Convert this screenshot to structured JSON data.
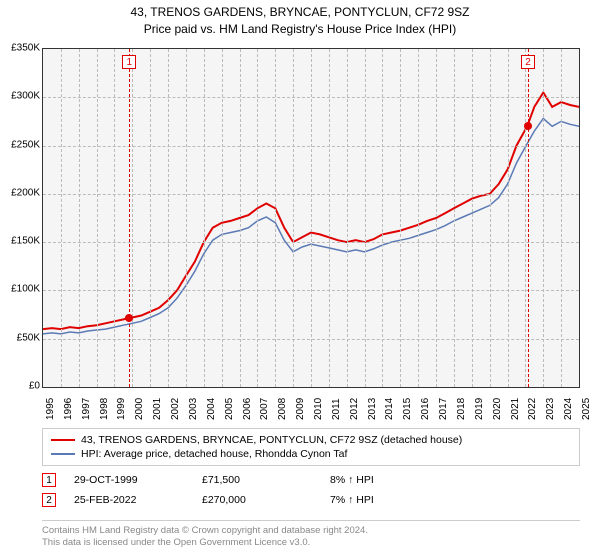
{
  "title": {
    "line1": "43, TRENOS GARDENS, BRYNCAE, PONTYCLUN, CF72 9SZ",
    "line2": "Price paid vs. HM Land Registry's House Price Index (HPI)"
  },
  "chart": {
    "type": "line",
    "background_color": "#f5f5f5",
    "grid_color": "#bbbbbb",
    "border_color": "#333333",
    "y": {
      "min": 0,
      "max": 350000,
      "step": 50000,
      "labels": [
        "£0",
        "£50K",
        "£100K",
        "£150K",
        "£200K",
        "£250K",
        "£300K",
        "£350K"
      ]
    },
    "x": {
      "min": 1995,
      "max": 2025,
      "labels": [
        "1995",
        "1996",
        "1997",
        "1998",
        "1999",
        "2000",
        "2001",
        "2002",
        "2003",
        "2004",
        "2005",
        "2006",
        "2007",
        "2008",
        "2009",
        "2010",
        "2011",
        "2012",
        "2013",
        "2014",
        "2015",
        "2016",
        "2017",
        "2018",
        "2019",
        "2020",
        "2021",
        "2022",
        "2023",
        "2024",
        "2025"
      ]
    },
    "series": [
      {
        "name": "43, TRENOS GARDENS, BRYNCAE, PONTYCLUN, CF72 9SZ (detached house)",
        "color": "#e00000",
        "width": 2,
        "data": [
          [
            1995.0,
            60
          ],
          [
            1995.5,
            61
          ],
          [
            1996.0,
            60
          ],
          [
            1996.5,
            62
          ],
          [
            1997.0,
            61
          ],
          [
            1997.5,
            63
          ],
          [
            1998.0,
            64
          ],
          [
            1998.5,
            66
          ],
          [
            1999.0,
            68
          ],
          [
            1999.5,
            70
          ],
          [
            1999.8,
            71.5
          ],
          [
            2000.0,
            72
          ],
          [
            2000.5,
            74
          ],
          [
            2001.0,
            78
          ],
          [
            2001.5,
            82
          ],
          [
            2002.0,
            90
          ],
          [
            2002.5,
            100
          ],
          [
            2003.0,
            115
          ],
          [
            2003.5,
            130
          ],
          [
            2004.0,
            150
          ],
          [
            2004.5,
            165
          ],
          [
            2005.0,
            170
          ],
          [
            2005.5,
            172
          ],
          [
            2006.0,
            175
          ],
          [
            2006.5,
            178
          ],
          [
            2007.0,
            185
          ],
          [
            2007.5,
            190
          ],
          [
            2008.0,
            185
          ],
          [
            2008.5,
            165
          ],
          [
            2009.0,
            150
          ],
          [
            2009.5,
            155
          ],
          [
            2010.0,
            160
          ],
          [
            2010.5,
            158
          ],
          [
            2011.0,
            155
          ],
          [
            2011.5,
            152
          ],
          [
            2012.0,
            150
          ],
          [
            2012.5,
            152
          ],
          [
            2013.0,
            150
          ],
          [
            2013.5,
            153
          ],
          [
            2014.0,
            158
          ],
          [
            2014.5,
            160
          ],
          [
            2015.0,
            162
          ],
          [
            2015.5,
            165
          ],
          [
            2016.0,
            168
          ],
          [
            2016.5,
            172
          ],
          [
            2017.0,
            175
          ],
          [
            2017.5,
            180
          ],
          [
            2018.0,
            185
          ],
          [
            2018.5,
            190
          ],
          [
            2019.0,
            195
          ],
          [
            2019.5,
            198
          ],
          [
            2020.0,
            200
          ],
          [
            2020.5,
            210
          ],
          [
            2021.0,
            225
          ],
          [
            2021.5,
            250
          ],
          [
            2022.1,
            270
          ],
          [
            2022.5,
            290
          ],
          [
            2023.0,
            305
          ],
          [
            2023.5,
            290
          ],
          [
            2024.0,
            295
          ],
          [
            2024.5,
            292
          ],
          [
            2025.0,
            290
          ]
        ]
      },
      {
        "name": "HPI: Average price, detached house, Rhondda Cynon Taf",
        "color": "#5b7ab5",
        "width": 1.5,
        "data": [
          [
            1995.0,
            55
          ],
          [
            1995.5,
            56
          ],
          [
            1996.0,
            55
          ],
          [
            1996.5,
            57
          ],
          [
            1997.0,
            56
          ],
          [
            1997.5,
            58
          ],
          [
            1998.0,
            59
          ],
          [
            1998.5,
            60
          ],
          [
            1999.0,
            62
          ],
          [
            1999.5,
            64
          ],
          [
            2000.0,
            66
          ],
          [
            2000.5,
            68
          ],
          [
            2001.0,
            72
          ],
          [
            2001.5,
            76
          ],
          [
            2002.0,
            82
          ],
          [
            2002.5,
            92
          ],
          [
            2003.0,
            105
          ],
          [
            2003.5,
            120
          ],
          [
            2004.0,
            138
          ],
          [
            2004.5,
            152
          ],
          [
            2005.0,
            158
          ],
          [
            2005.5,
            160
          ],
          [
            2006.0,
            162
          ],
          [
            2006.5,
            165
          ],
          [
            2007.0,
            172
          ],
          [
            2007.5,
            176
          ],
          [
            2008.0,
            170
          ],
          [
            2008.5,
            152
          ],
          [
            2009.0,
            140
          ],
          [
            2009.5,
            145
          ],
          [
            2010.0,
            148
          ],
          [
            2010.5,
            146
          ],
          [
            2011.0,
            144
          ],
          [
            2011.5,
            142
          ],
          [
            2012.0,
            140
          ],
          [
            2012.5,
            142
          ],
          [
            2013.0,
            140
          ],
          [
            2013.5,
            143
          ],
          [
            2014.0,
            147
          ],
          [
            2014.5,
            150
          ],
          [
            2015.0,
            152
          ],
          [
            2015.5,
            154
          ],
          [
            2016.0,
            157
          ],
          [
            2016.5,
            160
          ],
          [
            2017.0,
            163
          ],
          [
            2017.5,
            167
          ],
          [
            2018.0,
            172
          ],
          [
            2018.5,
            176
          ],
          [
            2019.0,
            180
          ],
          [
            2019.5,
            184
          ],
          [
            2020.0,
            188
          ],
          [
            2020.5,
            196
          ],
          [
            2021.0,
            210
          ],
          [
            2021.5,
            232
          ],
          [
            2022.1,
            252
          ],
          [
            2022.5,
            265
          ],
          [
            2023.0,
            278
          ],
          [
            2023.5,
            270
          ],
          [
            2024.0,
            275
          ],
          [
            2024.5,
            272
          ],
          [
            2025.0,
            270
          ]
        ]
      }
    ],
    "events": [
      {
        "n": "1",
        "x": 1999.83,
        "line_color": "#e00000",
        "box_color": "#e00000"
      },
      {
        "n": "2",
        "x": 2022.15,
        "line_color": "#e00000",
        "box_color": "#e00000"
      }
    ],
    "markers": [
      {
        "x": 1999.83,
        "y": 71.5,
        "color": "#e00000",
        "size": 8
      },
      {
        "x": 2022.15,
        "y": 270,
        "color": "#e00000",
        "size": 8
      }
    ]
  },
  "legend": {
    "items": [
      {
        "color": "#e00000",
        "label": "43, TRENOS GARDENS, BRYNCAE, PONTYCLUN, CF72 9SZ (detached house)"
      },
      {
        "color": "#5b7ab5",
        "label": "HPI: Average price, detached house, Rhondda Cynon Taf"
      }
    ]
  },
  "events_table": [
    {
      "n": "1",
      "date": "29-OCT-1999",
      "price": "£71,500",
      "diff": "8% ↑ HPI"
    },
    {
      "n": "2",
      "date": "25-FEB-2022",
      "price": "£270,000",
      "diff": "7% ↑ HPI"
    }
  ],
  "footer": {
    "line1": "Contains HM Land Registry data © Crown copyright and database right 2024.",
    "line2": "This data is licensed under the Open Government Licence v3.0."
  }
}
